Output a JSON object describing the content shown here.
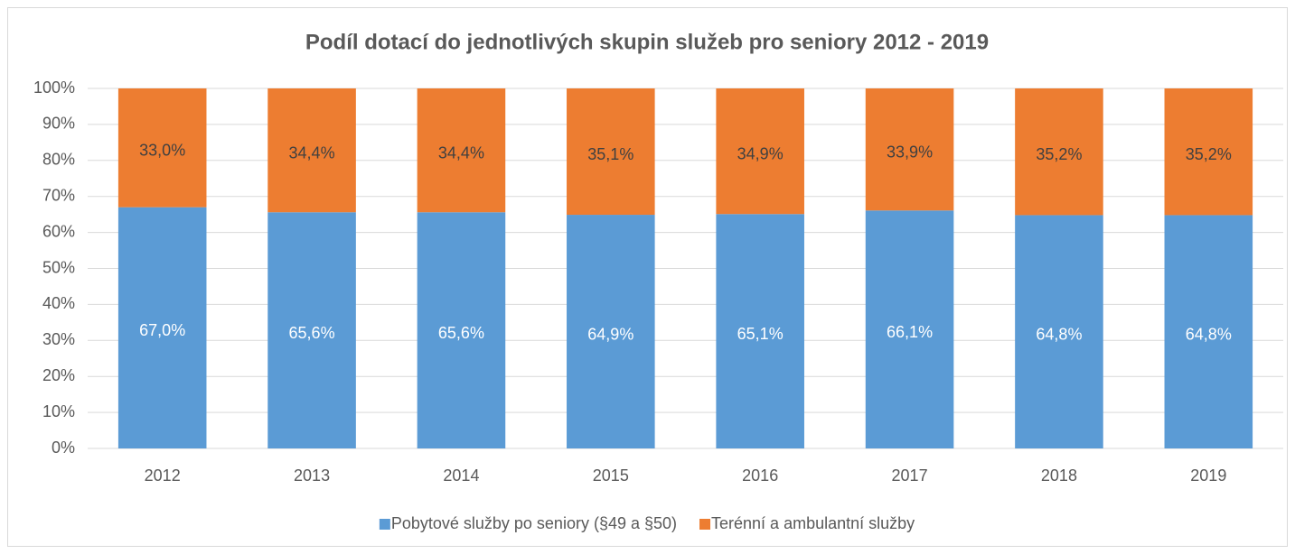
{
  "chart_data": {
    "type": "stacked_bar",
    "title": "Podíl dotací do jednotlivých skupin služeb pro seniory 2012 - 2019",
    "categories": [
      "2012",
      "2013",
      "2014",
      "2015",
      "2016",
      "2017",
      "2018",
      "2019"
    ],
    "series": [
      {
        "name": "Pobytové služby po seniory (§49 a §50)",
        "color": "#5b9bd5",
        "values": [
          67.0,
          65.6,
          65.6,
          64.9,
          65.1,
          66.1,
          64.8,
          64.8
        ],
        "value_labels": [
          "67,0%",
          "65,6%",
          "65,6%",
          "64,9%",
          "65,1%",
          "66,1%",
          "64,8%",
          "64,8%"
        ]
      },
      {
        "name": "Terénní a ambulantní služby",
        "color": "#ed7d31",
        "values": [
          33.0,
          34.4,
          34.4,
          35.1,
          34.9,
          33.9,
          35.2,
          35.2
        ],
        "value_labels": [
          "33,0%",
          "34,4%",
          "34,4%",
          "35,1%",
          "34,9%",
          "33,9%",
          "35,2%",
          "35,2%"
        ]
      }
    ],
    "ylim": [
      0,
      100
    ],
    "yticks": [
      {
        "value": 0,
        "label": "0%"
      },
      {
        "value": 10,
        "label": "10%"
      },
      {
        "value": 20,
        "label": "20%"
      },
      {
        "value": 30,
        "label": "30%"
      },
      {
        "value": 40,
        "label": "40%"
      },
      {
        "value": 50,
        "label": "50%"
      },
      {
        "value": 60,
        "label": "60%"
      },
      {
        "value": 70,
        "label": "70%"
      },
      {
        "value": 80,
        "label": "80%"
      },
      {
        "value": 90,
        "label": "90%"
      },
      {
        "value": 100,
        "label": "100%"
      }
    ],
    "grid": true,
    "legend": "bottom"
  }
}
